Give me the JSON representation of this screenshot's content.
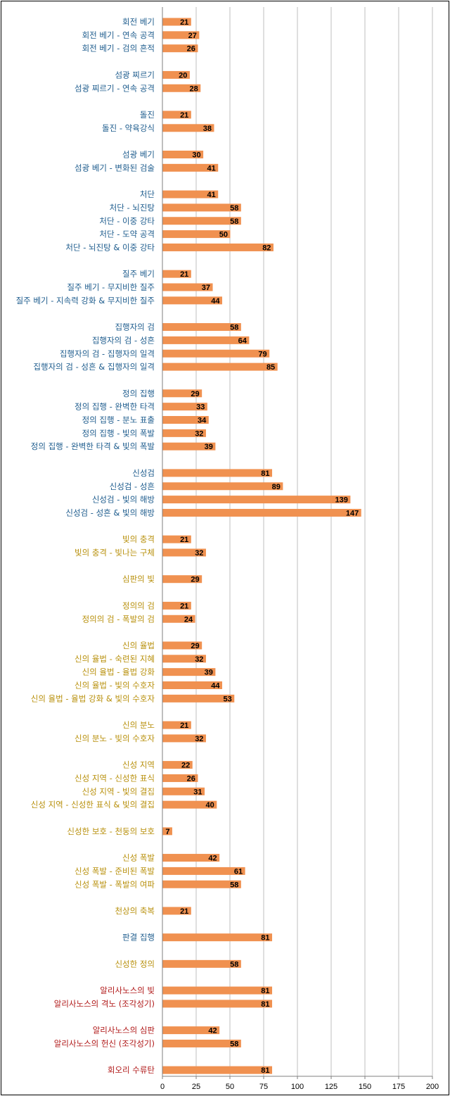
{
  "chart_data": {
    "type": "bar",
    "orientation": "horizontal",
    "xlim": [
      0,
      200
    ],
    "x_ticks": [
      "0",
      "25",
      "50",
      "75",
      "100",
      "125",
      "150",
      "175",
      "200"
    ],
    "grid": "vertical",
    "legend": "none",
    "bar_color": "#F09150",
    "categories": [
      "회전 베기",
      "회전 베기 - 연속 공격",
      "회전 베기 - 검의 흔적",
      "섬광 찌르기",
      "섬광 찌르기 - 연속 공격",
      "돌진",
      "돌진 - 약육강식",
      "섬광 베기",
      "섬광 베기 - 변화된 검술",
      "처단",
      "처단 - 뇌진탕",
      "처단 - 이중 강타",
      "처단 - 도약 공격",
      "처단 - 뇌진탕 & 이중 강타",
      "질주 베기",
      "질주 베기 - 무지비한 질주",
      "질주 베기 - 지속력 강화 & 무지비한 질주",
      "집행자의 검",
      "집행자의 검 - 성흔",
      "집행자의 검 - 집행자의 일격",
      "집행자의 검 - 성흔 & 집행자의 일격",
      "정의 집행",
      "정의 집행 - 완벽한 타격",
      "정의 집행 - 분노 표출",
      "정의 집행 - 빛의 폭발",
      "정의 집행 - 완벽한 타격 & 빛의 폭발",
      "신성검",
      "신성검 - 성흔",
      "신성검 - 빛의 해방",
      "신성검 - 성흔 & 빛의 해방",
      "빛의 충격",
      "빛의 충격 - 빛나는 구체",
      "심판의 빛",
      "정의의 검",
      "정의의 검 - 폭발의 검",
      "신의 율법",
      "신의 율법 - 숙련된 지혜",
      "신의 율법 - 율법 강화",
      "신의 율법 - 빛의 수호자",
      "신의 율법 - 율법 강화 & 빛의 수호자",
      "신의 분노",
      "신의 분노 - 빛의 수호자",
      "신성 지역",
      "신성 지역 - 신성한 표식",
      "신성 지역 - 빛의 결집",
      "신성 지역 - 신성한 표식 & 빛의 결집",
      "신성한 보호 - 천둥의 보호",
      "신성 폭발",
      "신성 폭발 - 준비된 폭발",
      "신성 폭발 - 폭발의 여파",
      "천상의 축복",
      "판결 집행",
      "신성한 정의",
      "알리사노스의 빛",
      "알리사노스의 격노 (조각성기)",
      "알리사노스의 심판",
      "알리사노스의 헌신 (조각성기)",
      "회오리 수류탄"
    ],
    "values": [
      21,
      27,
      26,
      20,
      28,
      21,
      38,
      30,
      41,
      41,
      58,
      58,
      50,
      82,
      21,
      37,
      44,
      58,
      64,
      79,
      85,
      29,
      33,
      34,
      32,
      39,
      81,
      89,
      139,
      147,
      21,
      32,
      29,
      21,
      24,
      29,
      32,
      39,
      44,
      53,
      21,
      32,
      22,
      26,
      31,
      40,
      7,
      42,
      61,
      58,
      21,
      81,
      58,
      81,
      81,
      42,
      58,
      81
    ],
    "label_colors": [
      "#1F5D8E",
      "#1F5D8E",
      "#1F5D8E",
      "#1F5D8E",
      "#1F5D8E",
      "#1F5D8E",
      "#1F5D8E",
      "#1F5D8E",
      "#1F5D8E",
      "#1F5D8E",
      "#1F5D8E",
      "#1F5D8E",
      "#1F5D8E",
      "#1F5D8E",
      "#1F5D8E",
      "#1F5D8E",
      "#1F5D8E",
      "#1F5D8E",
      "#1F5D8E",
      "#1F5D8E",
      "#1F5D8E",
      "#1F5D8E",
      "#1F5D8E",
      "#1F5D8E",
      "#1F5D8E",
      "#1F5D8E",
      "#1F5D8E",
      "#1F5D8E",
      "#1F5D8E",
      "#1F5D8E",
      "#B8900C",
      "#B8900C",
      "#B8900C",
      "#B8900C",
      "#B8900C",
      "#B8900C",
      "#B8900C",
      "#B8900C",
      "#B8900C",
      "#B8900C",
      "#B8900C",
      "#B8900C",
      "#B8900C",
      "#B8900C",
      "#B8900C",
      "#B8900C",
      "#B8900C",
      "#B8900C",
      "#B8900C",
      "#B8900C",
      "#B8900C",
      "#1F5D8E",
      "#B8900C",
      "#B01818",
      "#B01818",
      "#B01818",
      "#B01818",
      "#B01818"
    ],
    "groups": [
      3,
      2,
      2,
      2,
      5,
      3,
      4,
      5,
      4,
      2,
      1,
      2,
      5,
      2,
      4,
      1,
      3,
      1,
      1,
      1,
      2,
      2,
      1
    ]
  }
}
